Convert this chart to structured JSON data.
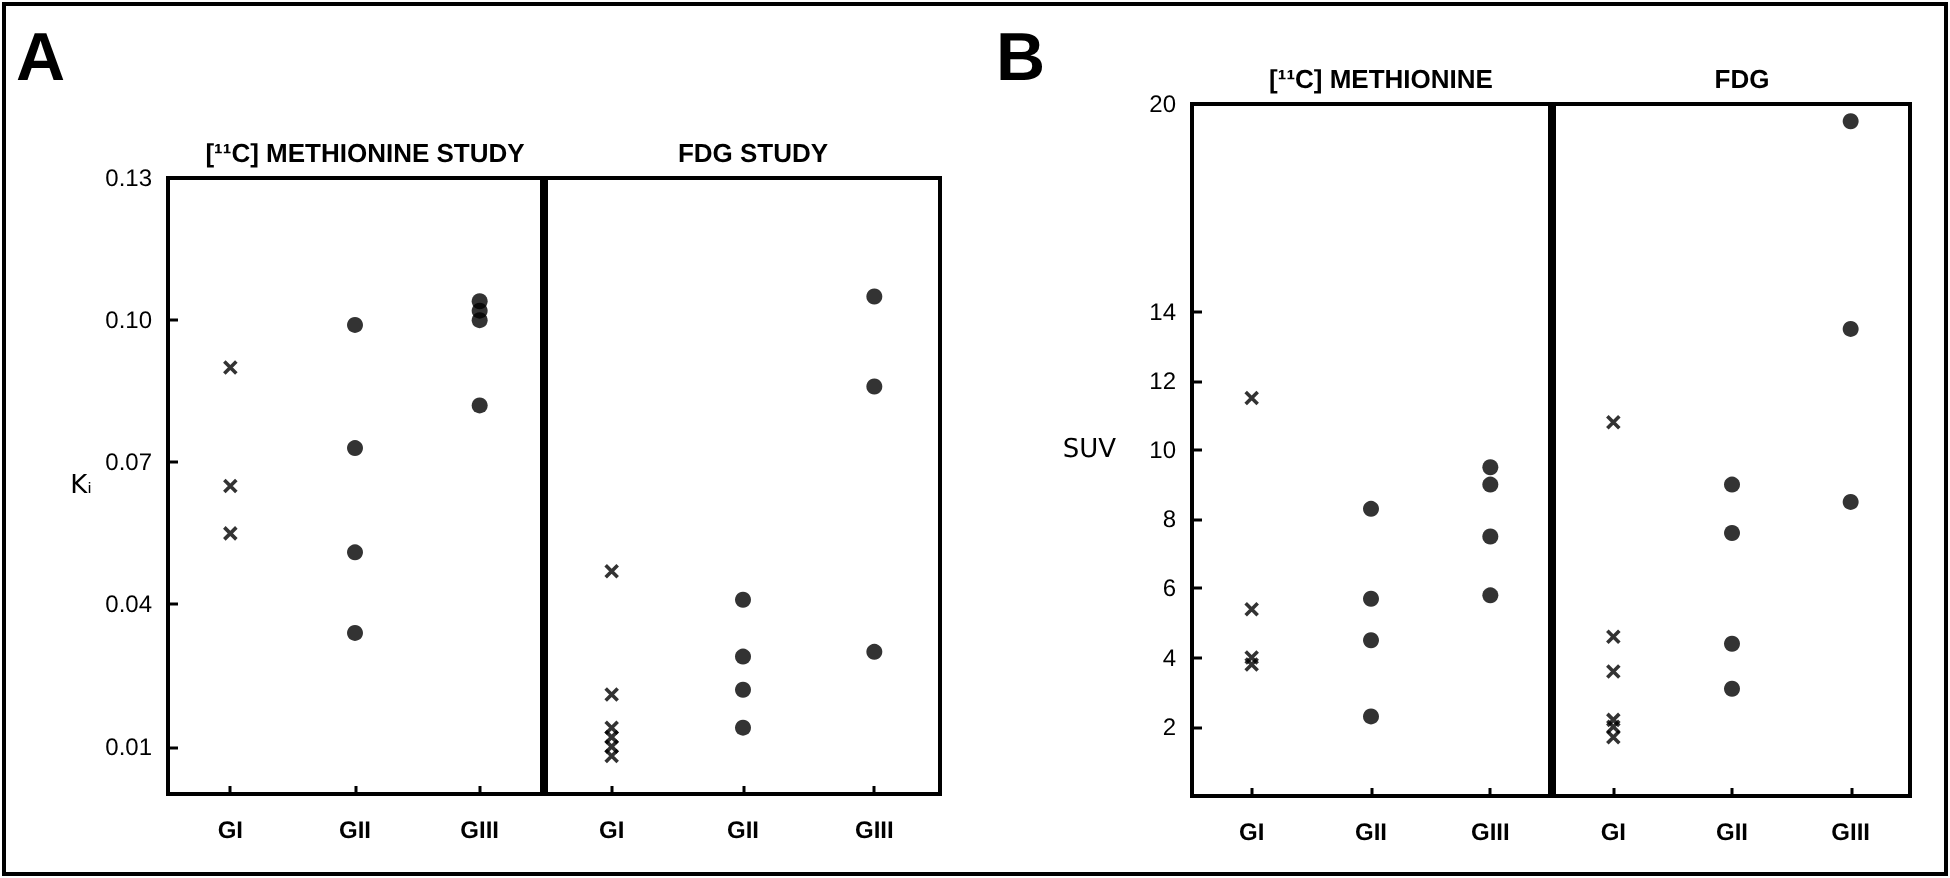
{
  "chart_data": [
    {
      "type": "scatter",
      "title": "[¹¹C] METHIONINE STUDY",
      "ylabel": "Kᵢ",
      "annotations": [
        "A"
      ],
      "categories": [
        "GI",
        "GII",
        "GIII"
      ],
      "ylim": [
        0,
        0.13
      ],
      "yticks": [
        0.01,
        0.04,
        0.07,
        {
          "value": 0.1,
          "label": "0.10"
        },
        0.13
      ],
      "series": [
        {
          "marker": "cross",
          "color": "#000000",
          "x": [
            "GI",
            "GI",
            "GI"
          ],
          "values": [
            0.09,
            0.065,
            0.055
          ]
        },
        {
          "marker": "circle",
          "color": "#000000",
          "x": [
            "GII",
            "GII",
            "GII",
            "GII"
          ],
          "values": [
            0.099,
            0.073,
            0.051,
            0.034
          ]
        },
        {
          "marker": "circle",
          "color": "#000000",
          "x": [
            "GIII",
            "GIII",
            "GIII",
            "GIII"
          ],
          "values": [
            0.104,
            0.102,
            0.1,
            0.082
          ]
        }
      ]
    },
    {
      "type": "scatter",
      "title": "FDG STUDY",
      "categories": [
        "GI",
        "GII",
        "GIII"
      ],
      "ylim": [
        0,
        0.13
      ],
      "tick_labels": "x",
      "series": [
        {
          "marker": "cross",
          "color": "#000000",
          "x": [
            "GI",
            "GI",
            "GI",
            "GI",
            "GI",
            "GI"
          ],
          "values": [
            0.047,
            0.021,
            0.014,
            0.012,
            0.01,
            0.008
          ]
        },
        {
          "marker": "circle",
          "color": "#000000",
          "x": [
            "GII",
            "GII",
            "GII",
            "GII"
          ],
          "values": [
            0.041,
            0.029,
            0.022,
            0.014
          ]
        },
        {
          "marker": "circle",
          "color": "#000000",
          "x": [
            "GIII",
            "GIII",
            "GIII"
          ],
          "values": [
            0.105,
            0.086,
            0.03
          ]
        }
      ]
    },
    {
      "type": "scatter",
      "title": "[¹¹C] METHIONINE",
      "ylabel": "SUV",
      "annotations": [
        "B"
      ],
      "categories": [
        "GI",
        "GII",
        "GIII"
      ],
      "ylim": [
        0,
        20
      ],
      "yticks": [
        2,
        4,
        6,
        8,
        10,
        12,
        14,
        20
      ],
      "series": [
        {
          "marker": "cross",
          "color": "#000000",
          "x": [
            "GI",
            "GI",
            "GI",
            "GI"
          ],
          "values": [
            11.5,
            5.4,
            4.0,
            3.8
          ]
        },
        {
          "marker": "circle",
          "color": "#000000",
          "x": [
            "GII",
            "GII",
            "GII",
            "GII"
          ],
          "values": [
            8.3,
            5.7,
            4.5,
            2.3
          ]
        },
        {
          "marker": "circle",
          "color": "#000000",
          "x": [
            "GIII",
            "GIII",
            "GIII",
            "GIII"
          ],
          "values": [
            9.5,
            9.0,
            7.5,
            5.8
          ]
        }
      ]
    },
    {
      "type": "scatter",
      "title": "FDG",
      "categories": [
        "GI",
        "GII",
        "GIII"
      ],
      "ylim": [
        0,
        20
      ],
      "tick_labels": "x",
      "series": [
        {
          "marker": "cross",
          "color": "#000000",
          "x": [
            "GI",
            "GI",
            "GI",
            "GI",
            "GI",
            "GI"
          ],
          "values": [
            10.8,
            4.6,
            3.6,
            2.2,
            2.0,
            1.7
          ]
        },
        {
          "marker": "circle",
          "color": "#000000",
          "x": [
            "GII",
            "GII",
            "GII",
            "GII"
          ],
          "values": [
            9.0,
            7.6,
            4.4,
            3.1
          ]
        },
        {
          "marker": "circle",
          "color": "#000000",
          "x": [
            "GIII",
            "GIII",
            "GIII"
          ],
          "values": [
            19.5,
            13.5,
            8.5
          ]
        }
      ]
    }
  ]
}
